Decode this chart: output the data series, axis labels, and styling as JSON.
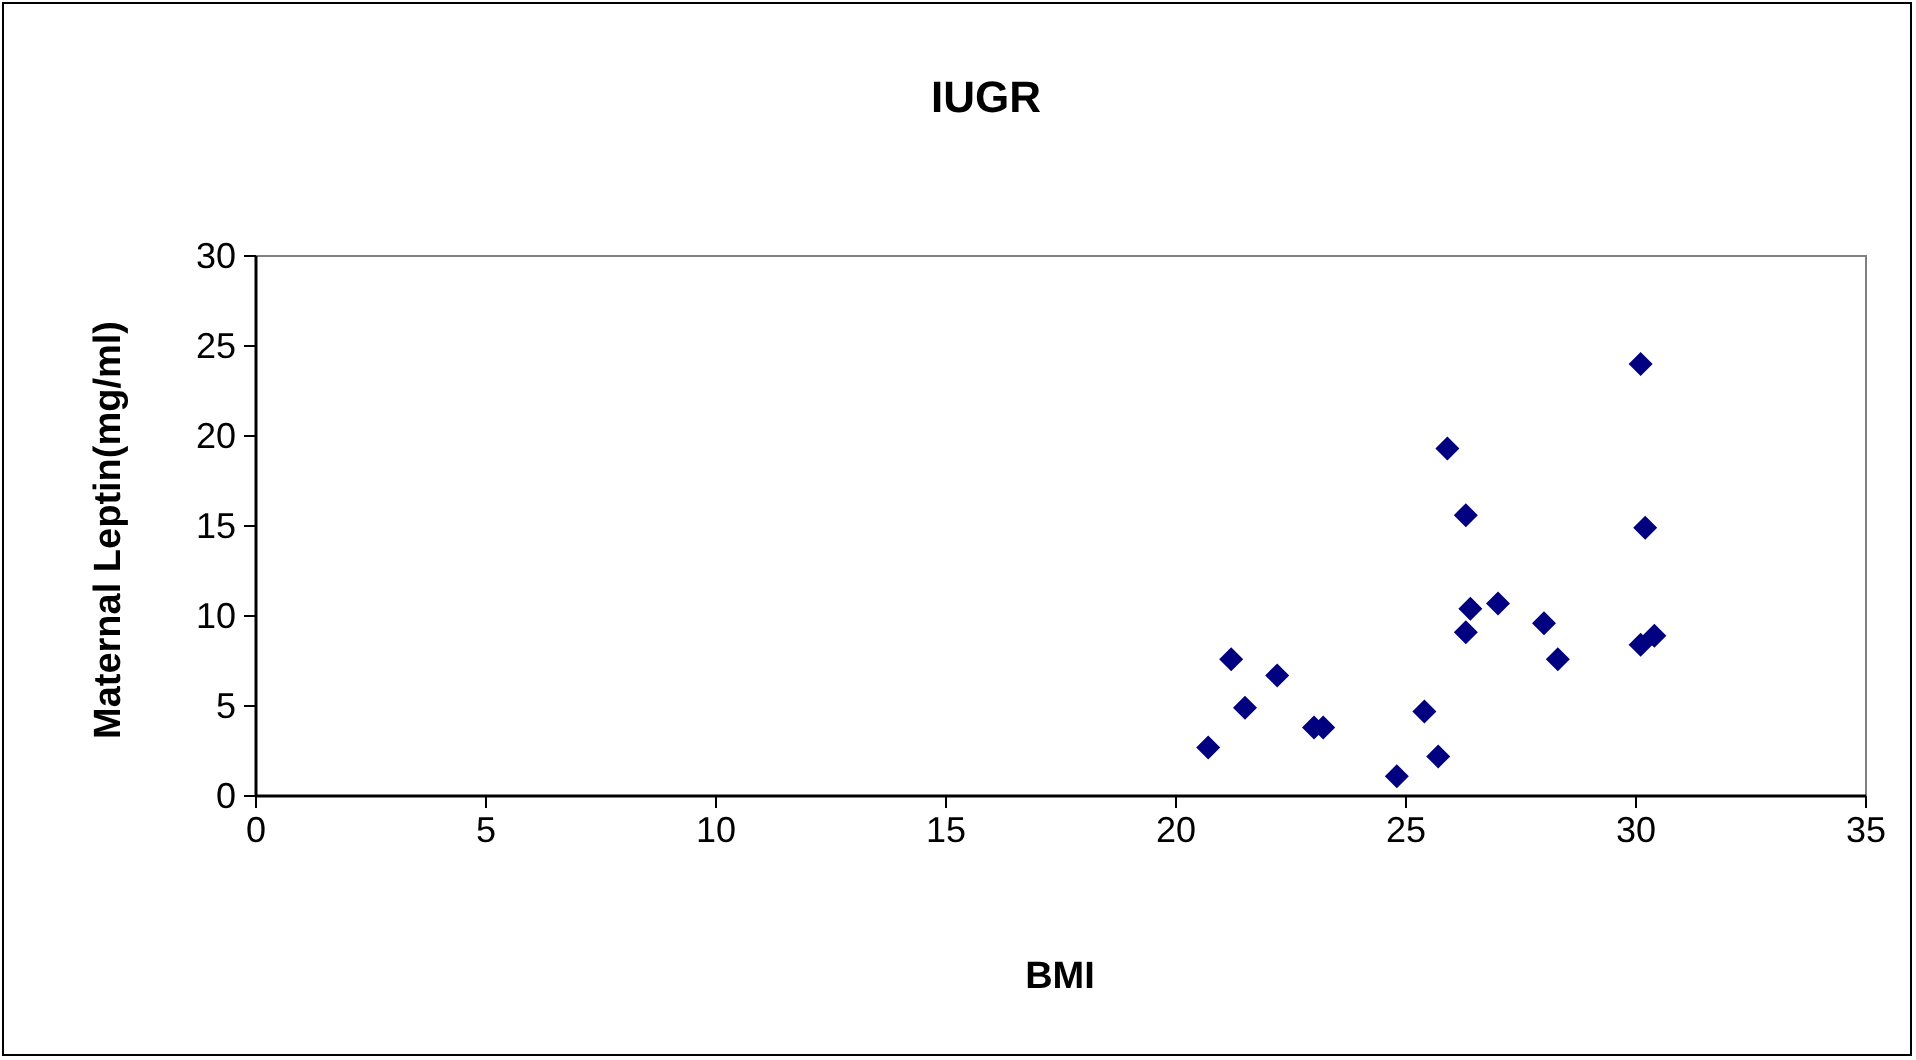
{
  "chart_data": {
    "type": "scatter",
    "title": "IUGR",
    "xlabel": "BMI",
    "ylabel": "Maternal Leptin(mg/ml)",
    "x": [
      20.7,
      21.2,
      21.5,
      22.2,
      23.0,
      23.2,
      24.8,
      25.4,
      25.7,
      25.9,
      26.3,
      26.4,
      26.3,
      27.0,
      28.0,
      28.3,
      30.1,
      30.2,
      30.1,
      30.4
    ],
    "series": [
      {
        "color": "#000080",
        "values": [
          2.7,
          7.6,
          4.9,
          6.7,
          3.8,
          3.8,
          1.1,
          4.7,
          2.2,
          19.3,
          15.6,
          10.4,
          9.1,
          10.7,
          9.6,
          7.6,
          24.0,
          14.9,
          8.4,
          8.9
        ]
      }
    ],
    "xlim": [
      0,
      35
    ],
    "xticks": [
      0,
      5,
      10,
      15,
      20,
      25,
      30,
      35
    ],
    "ylim": [
      0,
      30
    ],
    "yticks": [
      0,
      5,
      10,
      15,
      20,
      25,
      30
    ],
    "marker": "diamond",
    "grid": false
  }
}
